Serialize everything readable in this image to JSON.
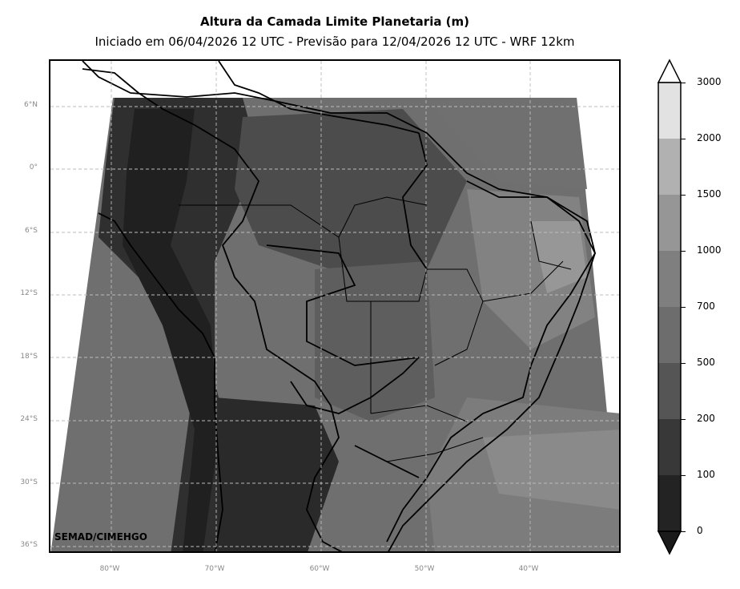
{
  "title": "Altura da Camada Limite Planetaria (m)",
  "subtitle": "Iniciado em 06/04/2026 12 UTC - Previsão para 12/04/2026 12 UTC - WRF 12km",
  "credit": "SEMAD/CIMEHGO",
  "lat_labels": [
    "6°N",
    "0°",
    "6°S",
    "12°S",
    "18°S",
    "24°S",
    "30°S",
    "36°S"
  ],
  "lon_labels": [
    "80°W",
    "70°W",
    "60°W",
    "50°W",
    "40°W"
  ],
  "colorbar": {
    "levels": [
      "0",
      "100",
      "200",
      "500",
      "700",
      "1000",
      "1500",
      "2000",
      "3000"
    ],
    "colors": [
      "#1e1e1e",
      "#232323",
      "#383838",
      "#555555",
      "#6d6d6d",
      "#7f7f7f",
      "#969696",
      "#b1b1b1",
      "#e2e2e2"
    ],
    "extend": "both"
  }
}
